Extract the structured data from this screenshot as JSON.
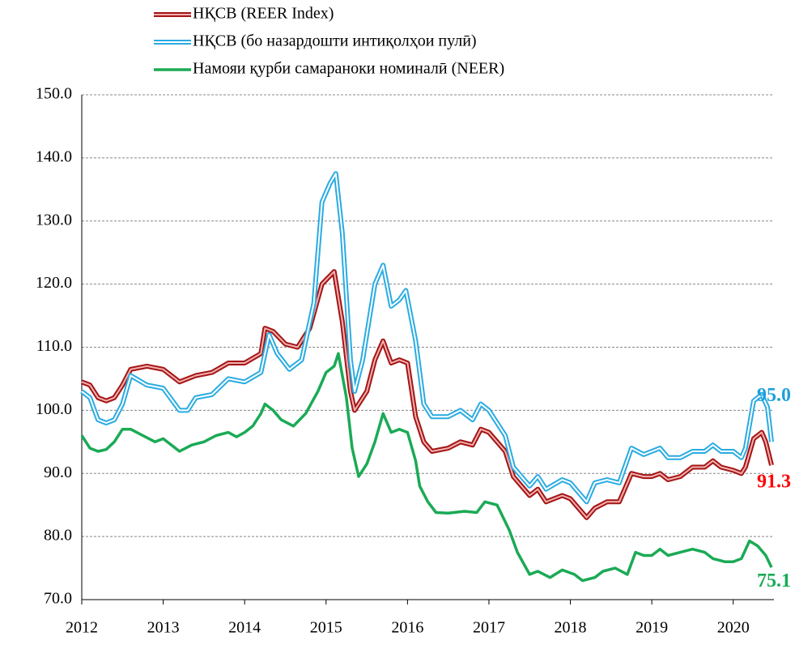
{
  "chart_data": {
    "type": "line",
    "xlim": [
      2012,
      2020.5
    ],
    "xticks": [
      2012,
      2013,
      2014,
      2015,
      2016,
      2017,
      2018,
      2019,
      2020
    ],
    "ylim": [
      70,
      150
    ],
    "yticks": [
      {
        "value": 70,
        "label": "70.0"
      },
      {
        "value": 80,
        "label": "80.0"
      },
      {
        "value": 90,
        "label": "90.0"
      },
      {
        "value": 100,
        "label": "100.0"
      },
      {
        "value": 110,
        "label": "110.0"
      },
      {
        "value": 120,
        "label": "120.0"
      },
      {
        "value": 130,
        "label": "130.0"
      },
      {
        "value": 140,
        "label": "140.0"
      },
      {
        "value": 150,
        "label": "150.0"
      }
    ],
    "grid": true,
    "series": [
      {
        "name": "НҚСВ (REER Index)",
        "color": "#a31515",
        "style": "double",
        "last_label": "91.3",
        "label_color": "#ff0000",
        "x": [
          2012.0,
          2012.1,
          2012.2,
          2012.3,
          2012.4,
          2012.5,
          2012.6,
          2012.8,
          2013.0,
          2013.2,
          2013.4,
          2013.6,
          2013.8,
          2014.0,
          2014.2,
          2014.25,
          2014.35,
          2014.5,
          2014.65,
          2014.8,
          2014.95,
          2015.1,
          2015.2,
          2015.3,
          2015.35,
          2015.5,
          2015.6,
          2015.7,
          2015.8,
          2015.9,
          2016.0,
          2016.1,
          2016.2,
          2016.3,
          2016.5,
          2016.65,
          2016.8,
          2016.9,
          2017.0,
          2017.2,
          2017.3,
          2017.5,
          2017.6,
          2017.7,
          2017.9,
          2018.0,
          2018.2,
          2018.3,
          2018.45,
          2018.6,
          2018.75,
          2018.9,
          2019.0,
          2019.1,
          2019.2,
          2019.35,
          2019.5,
          2019.65,
          2019.75,
          2019.85,
          2020.0,
          2020.1,
          2020.15,
          2020.25,
          2020.35,
          2020.4,
          2020.47
        ],
        "values": [
          104.5,
          104,
          102,
          101.5,
          102,
          104,
          106.5,
          107,
          106.5,
          104.5,
          105.5,
          106,
          107.5,
          107.5,
          109,
          113,
          112.5,
          110.5,
          110,
          113,
          120,
          122,
          114,
          103,
          100,
          103,
          108,
          111,
          107.5,
          108,
          107.5,
          99,
          95,
          93.5,
          94,
          95,
          94.5,
          97,
          96.5,
          93.5,
          89.5,
          86.5,
          87.5,
          85.5,
          86.5,
          86,
          83,
          84.5,
          85.5,
          85.5,
          90,
          89.5,
          89.5,
          90,
          89,
          89.5,
          91,
          91,
          92,
          91,
          90.5,
          90,
          91,
          95.5,
          96.5,
          95,
          91.3
        ]
      },
      {
        "name": "НҚСВ (бо назардошти интиқолҳои пулӣ)",
        "color": "#29abe2",
        "style": "double",
        "last_label": "95.0",
        "label_color": "#1ea0dc",
        "x": [
          2012.0,
          2012.1,
          2012.2,
          2012.3,
          2012.4,
          2012.5,
          2012.6,
          2012.8,
          2013.0,
          2013.2,
          2013.3,
          2013.4,
          2013.6,
          2013.8,
          2014.0,
          2014.2,
          2014.3,
          2014.4,
          2014.55,
          2014.7,
          2014.85,
          2014.95,
          2015.05,
          2015.12,
          2015.2,
          2015.3,
          2015.35,
          2015.45,
          2015.6,
          2015.7,
          2015.8,
          2015.9,
          2015.98,
          2016.1,
          2016.2,
          2016.3,
          2016.5,
          2016.65,
          2016.8,
          2016.9,
          2017.0,
          2017.2,
          2017.3,
          2017.5,
          2017.6,
          2017.7,
          2017.9,
          2018.0,
          2018.2,
          2018.3,
          2018.45,
          2018.6,
          2018.75,
          2018.9,
          2019.0,
          2019.1,
          2019.2,
          2019.35,
          2019.5,
          2019.65,
          2019.75,
          2019.85,
          2020.0,
          2020.1,
          2020.15,
          2020.25,
          2020.35,
          2020.42,
          2020.47
        ],
        "values": [
          103,
          102,
          98.5,
          98,
          98.5,
          101,
          105.5,
          104,
          103.5,
          100,
          100,
          102,
          102.5,
          105,
          104.5,
          106,
          112,
          109,
          106.5,
          108,
          117,
          133,
          136,
          137.5,
          128,
          108,
          103,
          108,
          120,
          123,
          116.5,
          117.5,
          119,
          111,
          101,
          99,
          99,
          100,
          98.5,
          101,
          100,
          96,
          91,
          88,
          89.5,
          87.5,
          89,
          88.5,
          85.5,
          88.5,
          89,
          88.5,
          94,
          93,
          93.5,
          94,
          92.5,
          92.5,
          93.5,
          93.5,
          94.5,
          93.5,
          93.5,
          92.5,
          94,
          101.5,
          102.5,
          100.5,
          95.0
        ]
      },
      {
        "name": "Намояи қурби самараноки номиналӣ (NEER)",
        "color": "#1aaa55",
        "style": "solid",
        "last_label": "75.1",
        "label_color": "#1aaa55",
        "x": [
          2012.0,
          2012.1,
          2012.2,
          2012.3,
          2012.4,
          2012.5,
          2012.6,
          2012.75,
          2012.9,
          2013.0,
          2013.2,
          2013.35,
          2013.5,
          2013.65,
          2013.8,
          2013.9,
          2014.0,
          2014.1,
          2014.2,
          2014.25,
          2014.35,
          2014.45,
          2014.6,
          2014.75,
          2014.9,
          2015.0,
          2015.1,
          2015.15,
          2015.25,
          2015.32,
          2015.4,
          2015.5,
          2015.6,
          2015.7,
          2015.8,
          2015.9,
          2016.0,
          2016.1,
          2016.15,
          2016.25,
          2016.35,
          2016.5,
          2016.7,
          2016.85,
          2016.95,
          2017.1,
          2017.25,
          2017.35,
          2017.5,
          2017.6,
          2017.75,
          2017.9,
          2018.05,
          2018.15,
          2018.3,
          2018.4,
          2018.55,
          2018.7,
          2018.8,
          2018.9,
          2019.0,
          2019.1,
          2019.2,
          2019.35,
          2019.5,
          2019.65,
          2019.75,
          2019.9,
          2020.0,
          2020.1,
          2020.2,
          2020.3,
          2020.4,
          2020.47
        ],
        "values": [
          96,
          94,
          93.5,
          93.8,
          95,
          97,
          97,
          96,
          95,
          95.5,
          93.5,
          94.5,
          95,
          96,
          96.5,
          95.8,
          96.5,
          97.5,
          99.5,
          101,
          100,
          98.5,
          97.5,
          99.5,
          103,
          106,
          107,
          109,
          102,
          94,
          89.5,
          91.5,
          95,
          99.5,
          96.5,
          97,
          96.5,
          92,
          88,
          85.5,
          83.8,
          83.7,
          84,
          83.8,
          85.5,
          85,
          81,
          77.5,
          74,
          74.5,
          73.5,
          74.7,
          74,
          73,
          73.5,
          74.5,
          75,
          74,
          77.5,
          77,
          77,
          78,
          77,
          77.5,
          78,
          77.5,
          76.5,
          76,
          76,
          76.5,
          79.3,
          78.5,
          77,
          75.1
        ]
      }
    ]
  }
}
